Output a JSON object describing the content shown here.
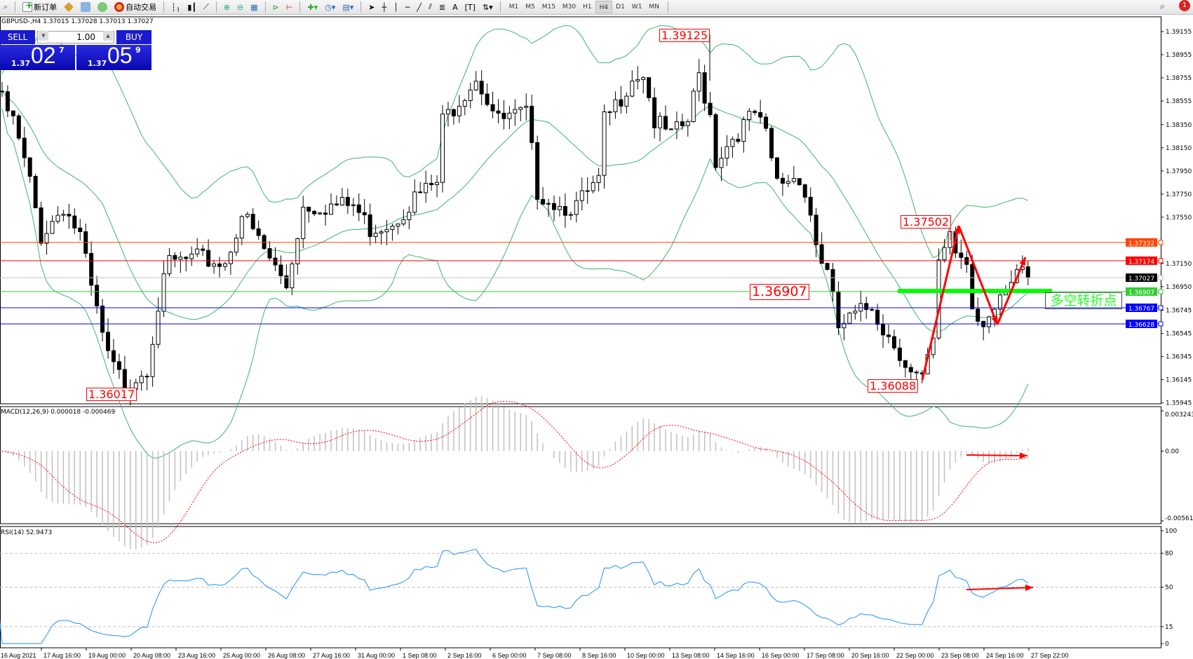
{
  "toolbar": {
    "new_order": "新订单",
    "auto_trading": "自动交易",
    "timeframes": [
      "M1",
      "M5",
      "M15",
      "M30",
      "H1",
      "H4",
      "D1",
      "W1",
      "MN"
    ],
    "active_timeframe": "H4",
    "notification_count": "1",
    "text_tool": "A"
  },
  "chart": {
    "title": "GBPUSD-,H4  1.37015 1.37028 1.37013 1.37027",
    "symbol": "GBPUSD-",
    "timeframe": "H4"
  },
  "one_click": {
    "sell": "SELL",
    "buy": "BUY",
    "lot": "1.00",
    "sell_pre": "1.37",
    "sell_big": "02",
    "sell_sup": "7",
    "buy_pre": "1.37",
    "buy_big": "05",
    "buy_sup": "9"
  },
  "price_axis": {
    "ticks": [
      "1.39155",
      "1.38955",
      "1.38755",
      "1.38555",
      "1.38350",
      "1.38150",
      "1.37950",
      "1.37750",
      "1.37550",
      "1.37150",
      "1.36950",
      "1.36745",
      "1.36545",
      "1.36345",
      "1.36145",
      "1.35945"
    ]
  },
  "price_lines": [
    {
      "price": "1.37332",
      "color": "#ff4500"
    },
    {
      "price": "1.37174",
      "color": "#ff0000"
    },
    {
      "price": "1.37027",
      "color": "#000000",
      "line": "#c0c0c0"
    },
    {
      "price": "1.36907",
      "color": "#32cd32"
    },
    {
      "price": "1.36767",
      "color": "#0000ff"
    },
    {
      "price": "1.36628",
      "color": "#0000ff"
    }
  ],
  "annotations": {
    "high_label": "1.39125",
    "low_label_1": "1.36017",
    "swing_high": "1.37502",
    "pivot": "1.36907",
    "low_label_2": "1.36088",
    "turn_text": "多空转折点",
    "turn_color": "#22ff22"
  },
  "chart_data": {
    "type": "candlestick",
    "key_closes": [
      [
        0,
        1.3864
      ],
      [
        3,
        1.38376
      ],
      [
        6,
        1.37847
      ],
      [
        8,
        1.37385
      ],
      [
        12,
        1.37649
      ],
      [
        15,
        1.37385
      ],
      [
        17,
        1.36923
      ],
      [
        20,
        1.36328
      ],
      [
        23,
        1.36097
      ],
      [
        27,
        1.36262
      ],
      [
        29,
        1.3679
      ],
      [
        31,
        1.37154
      ],
      [
        36,
        1.37187
      ],
      [
        41,
        1.37154
      ],
      [
        44,
        1.37583
      ],
      [
        49,
        1.37187
      ],
      [
        52,
        1.36956
      ],
      [
        55,
        1.37649
      ],
      [
        60,
        1.37649
      ],
      [
        64,
        1.37649
      ],
      [
        67,
        1.37451
      ],
      [
        71,
        1.37517
      ],
      [
        75,
        1.37715
      ],
      [
        79,
        1.37847
      ],
      [
        80,
        1.38376
      ],
      [
        86,
        1.38772
      ],
      [
        90,
        1.38376
      ],
      [
        95,
        1.38442
      ],
      [
        97,
        1.37781
      ],
      [
        101,
        1.37649
      ],
      [
        104,
        1.37649
      ],
      [
        108,
        1.37847
      ],
      [
        109,
        1.38376
      ],
      [
        111,
        1.38508
      ],
      [
        114,
        1.38772
      ],
      [
        116,
        1.38805
      ],
      [
        118,
        1.38376
      ],
      [
        121,
        1.38244
      ],
      [
        124,
        1.38376
      ],
      [
        126,
        1.38772
      ],
      [
        128,
        1.38442
      ],
      [
        129,
        1.38045
      ],
      [
        132,
        1.38244
      ],
      [
        136,
        1.38442
      ],
      [
        138,
        1.38244
      ],
      [
        140,
        1.37847
      ],
      [
        144,
        1.37913
      ],
      [
        146,
        1.37583
      ],
      [
        147,
        1.37319
      ],
      [
        149,
        1.37055
      ],
      [
        151,
        1.36592
      ],
      [
        153,
        1.36658
      ],
      [
        157,
        1.3679
      ],
      [
        159,
        1.36592
      ],
      [
        162,
        1.36394
      ],
      [
        164,
        1.36196
      ],
      [
        166,
        1.3613
      ],
      [
        168,
        1.3646
      ],
      [
        169,
        1.37121
      ],
      [
        171,
        1.37451
      ],
      [
        172,
        1.37253
      ],
      [
        174,
        1.37187
      ],
      [
        175,
        1.3679
      ],
      [
        177,
        1.36658
      ],
      [
        179,
        1.36724
      ],
      [
        182,
        1.36923
      ],
      [
        184,
        1.37121
      ],
      [
        185,
        1.37027
      ]
    ],
    "time_labels": [
      "16 Aug 2021",
      "17 Aug 16:00",
      "19 Aug 00:00",
      "20 Aug 08:00",
      "23 Aug 16:00",
      "25 Aug 00:00",
      "26 Aug 08:00",
      "27 Aug 16:00",
      "31 Aug 00:00",
      "1 Sep 08:00",
      "2 Sep 16:00",
      "6 Sep 00:00",
      "7 Sep 08:00",
      "8 Sep 16:00",
      "10 Sep 00:00",
      "13 Sep 08:00",
      "14 Sep 16:00",
      "16 Sep 00:00",
      "17 Sep 08:00",
      "20 Sep 16:00",
      "22 Sep 00:00",
      "23 Sep 08:00",
      "24 Sep 16:00",
      "27 Sep 22:00"
    ],
    "bollinger": {
      "period": 20,
      "deviation": 2,
      "color": "#3cb371"
    },
    "macd": {
      "label": "MACD(12,26,9) 0.000018 -0.000469",
      "max": 0.003243,
      "min": -0.005616,
      "ticks": [
        "0.003243",
        "0.00",
        "-0.005616"
      ],
      "histogram_color": "#c0c0c0",
      "signal_color": "#ff0000"
    },
    "rsi": {
      "label": "RSI(14) 52.9473",
      "levels": [
        80,
        50,
        15
      ],
      "ticks": [
        "100",
        "80",
        "50",
        "15",
        "0"
      ],
      "color": "#1e90ff"
    }
  }
}
